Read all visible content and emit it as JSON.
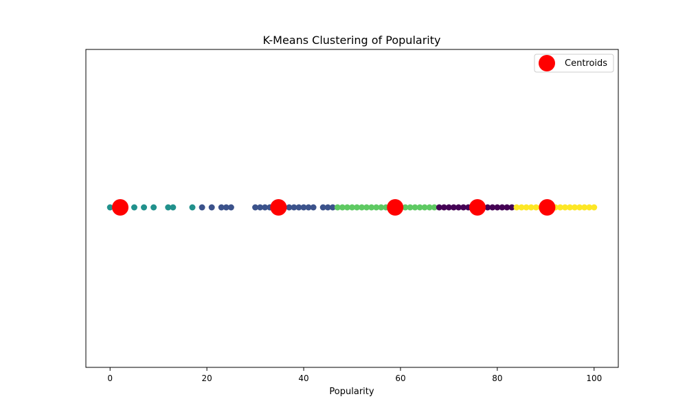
{
  "chart_data": {
    "type": "scatter",
    "title": "K-Means Clustering of Popularity",
    "xlabel": "Popularity",
    "ylabel": "",
    "xlim": [
      -5,
      105
    ],
    "xticks": [
      0,
      20,
      40,
      60,
      80,
      100
    ],
    "grid": false,
    "legend": {
      "placement": "top-right",
      "entries": [
        "Centroids"
      ]
    },
    "series": [
      {
        "color": "#21918c",
        "x": [
          0,
          1,
          3,
          5,
          7,
          9,
          12,
          13,
          17
        ]
      },
      {
        "color": "#3b528b",
        "x": [
          19,
          21,
          23,
          24,
          25,
          30,
          31,
          32,
          33,
          34,
          35,
          36,
          37,
          38,
          39,
          40,
          41,
          42,
          44,
          45,
          46
        ]
      },
      {
        "color": "#5ec962",
        "x": [
          47,
          48,
          49,
          50,
          51,
          52,
          53,
          54,
          55,
          56,
          57,
          58,
          59,
          60,
          61,
          62,
          63,
          64,
          65,
          66,
          67
        ]
      },
      {
        "color": "#440154",
        "x": [
          68,
          69,
          70,
          71,
          72,
          73,
          74,
          75,
          76,
          77,
          78,
          79,
          80,
          81,
          82,
          83
        ]
      },
      {
        "color": "#fde725",
        "x": [
          84,
          85,
          86,
          87,
          88,
          89,
          90,
          91,
          92,
          93,
          94,
          95,
          96,
          97,
          98,
          99,
          100
        ]
      }
    ],
    "centroids": {
      "name": "Centroids",
      "color": "#ff0000",
      "x": [
        2.1,
        34.8,
        58.9,
        75.9,
        90.3
      ]
    }
  }
}
